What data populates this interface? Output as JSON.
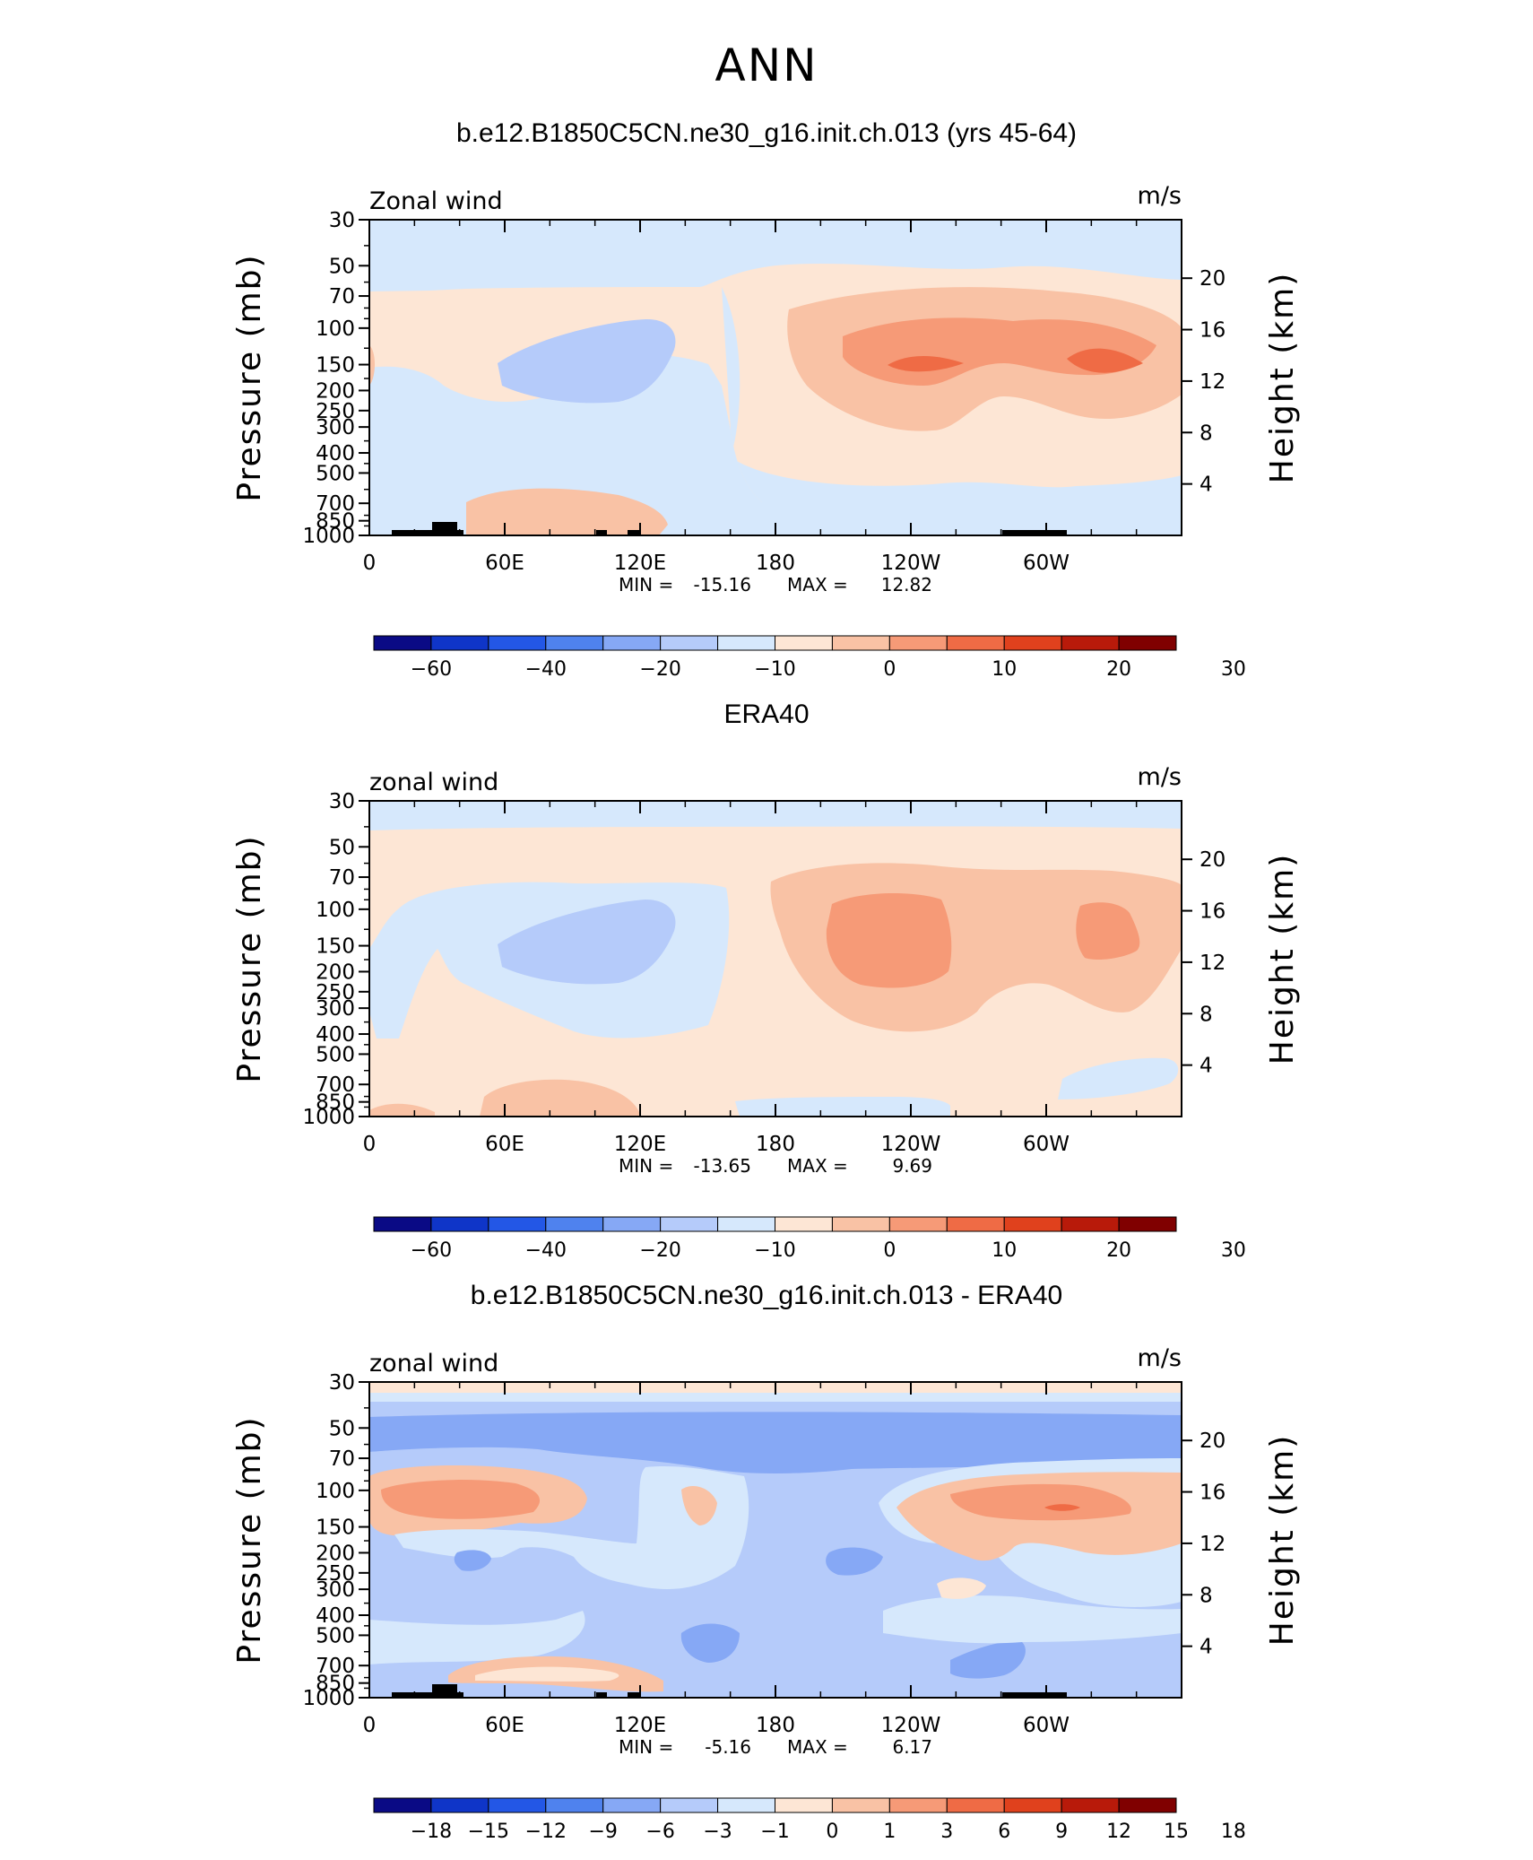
{
  "figure": {
    "title": "ANN"
  },
  "panels": [
    {
      "title": "b.e12.B1850C5CN.ne30_g16.init.ch.013 (yrs 45-64)",
      "var_label": "Zonal wind",
      "units": "m/s",
      "stats": {
        "min_label": "MIN =",
        "min": "-15.16",
        "max_label": "MAX =",
        "max": "12.82"
      },
      "colorbar": {
        "colors": [
          "#0a0a85",
          "#0f35c8",
          "#2357e6",
          "#4f82ee",
          "#86a8f5",
          "#b5cbfa",
          "#d6e8fc",
          "#fde6d5",
          "#f9c2a5",
          "#f69a77",
          "#ef6b45",
          "#e0411d",
          "#b81a0a",
          "#800000"
        ],
        "labels": [
          "-60",
          "-40",
          "-20",
          "-10",
          "0",
          "10",
          "20",
          "30"
        ],
        "label_boundaries": [
          1,
          3,
          5,
          7,
          9,
          11,
          13,
          15
        ]
      }
    },
    {
      "title": "ERA40",
      "var_label": "zonal wind",
      "units": "m/s",
      "stats": {
        "min_label": "MIN =",
        "min": "-13.65",
        "max_label": "MAX =",
        "max": "9.69"
      },
      "colorbar": {
        "colors": [
          "#0a0a85",
          "#0f35c8",
          "#2357e6",
          "#4f82ee",
          "#86a8f5",
          "#b5cbfa",
          "#d6e8fc",
          "#fde6d5",
          "#f9c2a5",
          "#f69a77",
          "#ef6b45",
          "#e0411d",
          "#b81a0a",
          "#800000"
        ],
        "labels": [
          "-60",
          "-40",
          "-20",
          "-10",
          "0",
          "10",
          "20",
          "30"
        ],
        "label_boundaries": [
          1,
          3,
          5,
          7,
          9,
          11,
          13,
          15
        ]
      }
    },
    {
      "title": "b.e12.B1850C5CN.ne30_g16.init.ch.013 - ERA40",
      "var_label": "zonal wind",
      "units": "m/s",
      "stats": {
        "min_label": "MIN =",
        "min": "-5.16",
        "max_label": "MAX =",
        "max": "6.17"
      },
      "colorbar": {
        "colors": [
          "#0a0a85",
          "#0f35c8",
          "#2357e6",
          "#4f82ee",
          "#86a8f5",
          "#b5cbfa",
          "#d6e8fc",
          "#fde6d5",
          "#f9c2a5",
          "#f69a77",
          "#ef6b45",
          "#e0411d",
          "#b81a0a",
          "#800000"
        ],
        "labels": [
          "-18",
          "-15",
          "-12",
          "-9",
          "-6",
          "-3",
          "-1",
          "0",
          "1",
          "3",
          "6",
          "9",
          "12",
          "15",
          "18"
        ],
        "label_boundaries": [
          1,
          2,
          3,
          4,
          5,
          6,
          7,
          8,
          9,
          10,
          11,
          12,
          13,
          14,
          15
        ]
      }
    }
  ],
  "chart_data": [
    {
      "type": "heatmap",
      "title": "b.e12.B1850C5CN.ne30_g16.init.ch.013 (yrs 45-64)",
      "xlabel": "",
      "ylabel": "Pressure (mb)",
      "ylabel_right": "Height (km)",
      "x_ticks": [
        "0",
        "60E",
        "120E",
        "180",
        "120W",
        "60W"
      ],
      "y_ticks": [
        "30",
        "50",
        "70",
        "100",
        "150",
        "200",
        "250",
        "300",
        "400",
        "500",
        "700",
        "850",
        "1000"
      ],
      "y_right_ticks": [
        "20",
        "16",
        "12",
        "8",
        "4"
      ],
      "pressure_range_mb": [
        1000,
        30
      ],
      "y_log_scale": true,
      "units": "m/s",
      "min": -15.16,
      "max": 12.82
    },
    {
      "type": "heatmap",
      "title": "ERA40",
      "xlabel": "",
      "ylabel": "Pressure (mb)",
      "ylabel_right": "Height (km)",
      "x_ticks": [
        "0",
        "60E",
        "120E",
        "180",
        "120W",
        "60W"
      ],
      "y_ticks": [
        "30",
        "50",
        "70",
        "100",
        "150",
        "200",
        "250",
        "300",
        "400",
        "500",
        "700",
        "850",
        "1000"
      ],
      "y_right_ticks": [
        "20",
        "16",
        "12",
        "8",
        "4"
      ],
      "pressure_range_mb": [
        1000,
        30
      ],
      "y_log_scale": true,
      "units": "m/s",
      "min": -13.65,
      "max": 9.69
    },
    {
      "type": "heatmap",
      "title": "b.e12.B1850C5CN.ne30_g16.init.ch.013 - ERA40",
      "xlabel": "",
      "ylabel": "Pressure (mb)",
      "ylabel_right": "Height (km)",
      "x_ticks": [
        "0",
        "60E",
        "120E",
        "180",
        "120W",
        "60W"
      ],
      "y_ticks": [
        "30",
        "50",
        "70",
        "100",
        "150",
        "200",
        "250",
        "300",
        "400",
        "500",
        "700",
        "850",
        "1000"
      ],
      "y_right_ticks": [
        "20",
        "16",
        "12",
        "8",
        "4"
      ],
      "pressure_range_mb": [
        1000,
        30
      ],
      "y_log_scale": true,
      "units": "m/s",
      "min": -5.16,
      "max": 6.17
    }
  ]
}
